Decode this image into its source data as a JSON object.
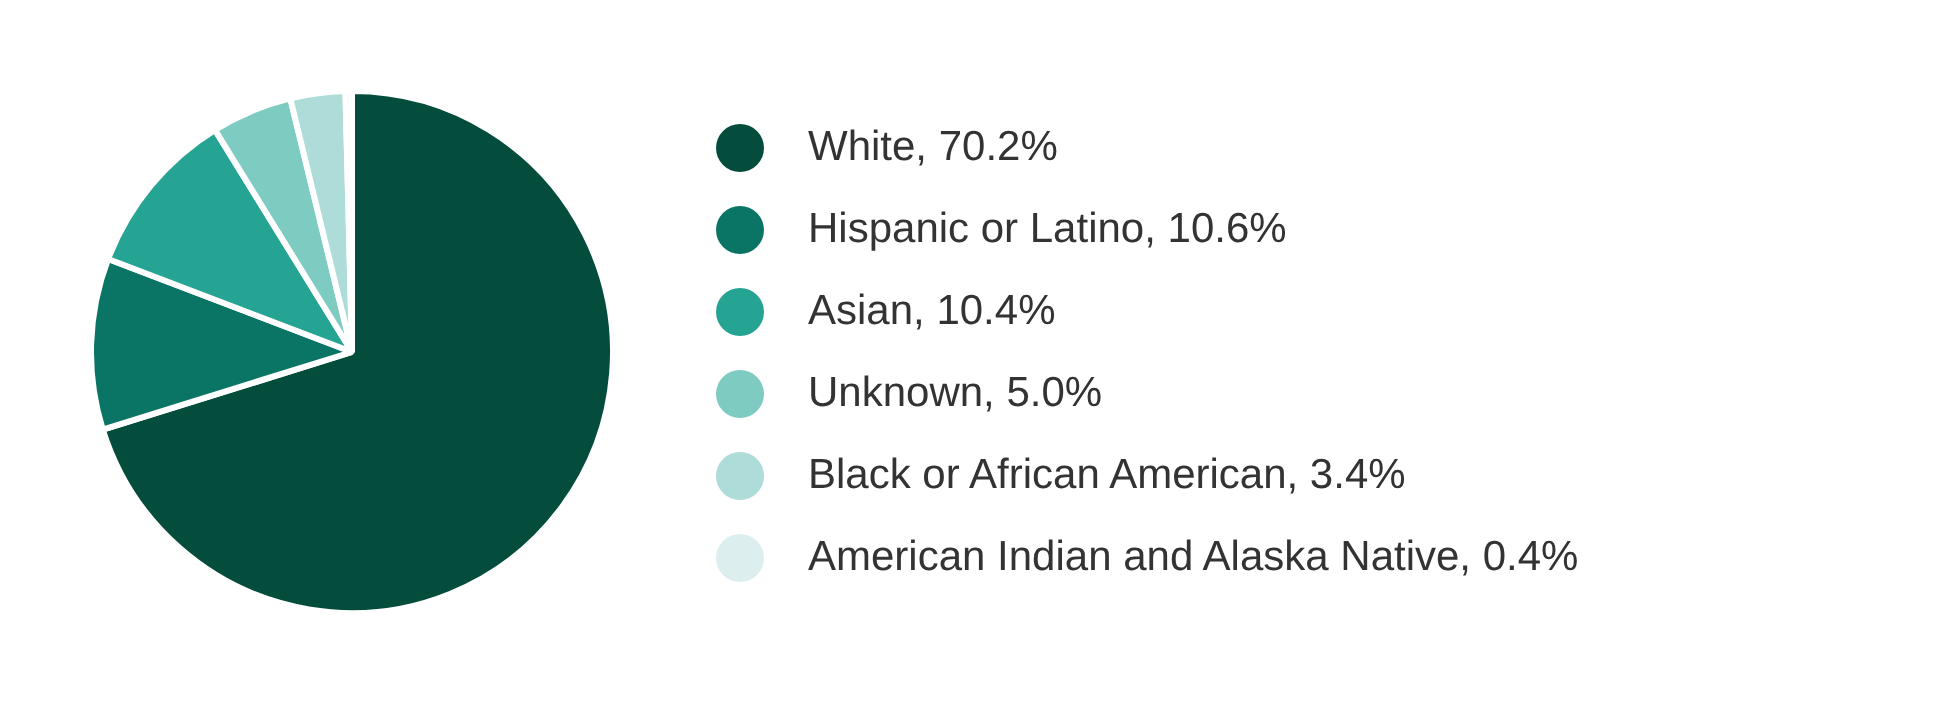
{
  "chart_data": {
    "type": "pie",
    "categories": [
      "White, 70.2%",
      "Hispanic or Latino, 10.6%",
      "Asian, 10.4%",
      "Unknown, 5.0%",
      "Black or African American, 3.4%",
      "American Indian and Alaska Native, 0.4%"
    ],
    "values": [
      70.2,
      10.6,
      10.4,
      5.0,
      3.4,
      0.4
    ],
    "colors": [
      "#044d3d",
      "#0a7565",
      "#26a493",
      "#7ecbc2",
      "#aedcd8",
      "#dcefee"
    ],
    "legend": "right"
  }
}
